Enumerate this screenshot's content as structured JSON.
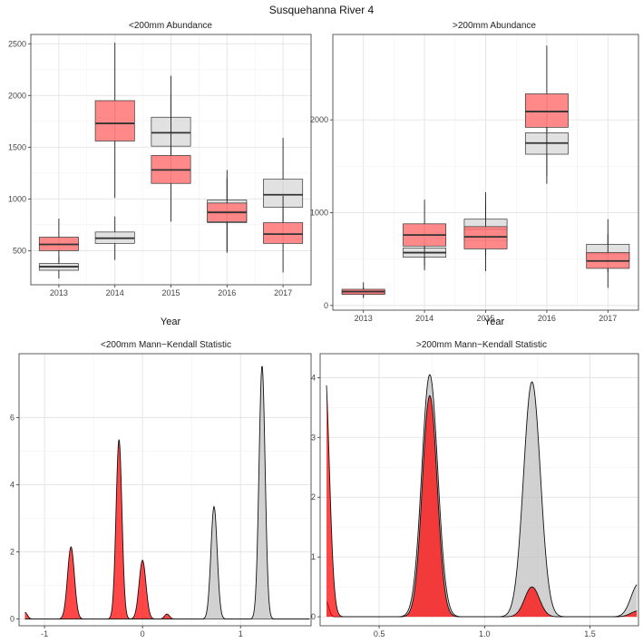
{
  "figure": {
    "title": "Susquehanna River 4"
  },
  "colors": {
    "red": "#ff0000",
    "grey": "#bdbdbd",
    "red_box": "#ff7f7f",
    "grey_box": "#dedede"
  },
  "chart_data": [
    {
      "id": "p1",
      "type": "box",
      "title": "<200mm Abundance",
      "xlabel": "Year",
      "ylabel": "",
      "categories": [
        "2013",
        "2014",
        "2015",
        "2016",
        "2017"
      ],
      "ylim": [
        170,
        2590
      ],
      "yticks": [
        500,
        1000,
        1500,
        2000,
        2500
      ],
      "series": [
        {
          "color": "grey",
          "boxes": [
            {
              "min": 230,
              "q1": 310,
              "median": 345,
              "q3": 375,
              "max": 440
            },
            {
              "min": 410,
              "q1": 570,
              "median": 620,
              "q3": 680,
              "max": 830
            },
            {
              "min": 1310,
              "q1": 1510,
              "median": 1640,
              "q3": 1790,
              "max": 2010
            },
            {
              "min": 480,
              "q1": 770,
              "median": 880,
              "q3": 990,
              "max": 1280
            },
            {
              "min": 750,
              "q1": 920,
              "median": 1040,
              "q3": 1190,
              "max": 1590
            }
          ]
        },
        {
          "color": "red",
          "boxes": [
            {
              "min": 390,
              "q1": 500,
              "median": 560,
              "q3": 630,
              "max": 810
            },
            {
              "min": 1010,
              "q1": 1560,
              "median": 1730,
              "q3": 1950,
              "max": 2510
            },
            {
              "min": 780,
              "q1": 1150,
              "median": 1280,
              "q3": 1420,
              "max": 2190
            },
            {
              "min": 490,
              "q1": 780,
              "median": 870,
              "q3": 960,
              "max": 1200
            },
            {
              "min": 290,
              "q1": 570,
              "median": 660,
              "q3": 770,
              "max": 1030
            }
          ]
        }
      ]
    },
    {
      "id": "p2",
      "type": "box",
      "title": ">200mm Abundance",
      "xlabel": "Year",
      "ylabel": "",
      "categories": [
        "2013",
        "2014",
        "2015",
        "2016",
        "2017"
      ],
      "ylim": [
        -50,
        2920
      ],
      "yticks": [
        0,
        1000,
        2000
      ],
      "series": [
        {
          "color": "grey",
          "boxes": [
            {
              "min": 95,
              "q1": 125,
              "median": 140,
              "q3": 160,
              "max": 190
            },
            {
              "min": 430,
              "q1": 520,
              "median": 570,
              "q3": 620,
              "max": 710
            },
            {
              "min": 530,
              "q1": 700,
              "median": 820,
              "q3": 930,
              "max": 1220
            },
            {
              "min": 1400,
              "q1": 1630,
              "median": 1750,
              "q3": 1860,
              "max": 2060
            },
            {
              "min": 360,
              "q1": 480,
              "median": 560,
              "q3": 660,
              "max": 930
            }
          ]
        },
        {
          "color": "red",
          "boxes": [
            {
              "min": 80,
              "q1": 120,
              "median": 150,
              "q3": 175,
              "max": 250
            },
            {
              "min": 380,
              "q1": 640,
              "median": 760,
              "q3": 880,
              "max": 1140
            },
            {
              "min": 370,
              "q1": 610,
              "median": 740,
              "q3": 850,
              "max": 1110
            },
            {
              "min": 1310,
              "q1": 1920,
              "median": 2090,
              "q3": 2280,
              "max": 2800
            },
            {
              "min": 190,
              "q1": 400,
              "median": 480,
              "q3": 570,
              "max": 770
            }
          ]
        }
      ]
    },
    {
      "id": "p3",
      "type": "density",
      "title": "<200mm Mann−Kendall Statistic",
      "xlabel": "",
      "ylabel": "",
      "xlim": [
        -1.26,
        1.72
      ],
      "ylim": [
        -0.2,
        7.9
      ],
      "xticks": [
        -1,
        0,
        1
      ],
      "yticks": [
        0,
        2,
        4,
        6
      ],
      "series": [
        {
          "color": "red",
          "peaks": [
            {
              "mu": -1.2,
              "sigma": 0.025,
              "height": 0.2
            },
            {
              "mu": -0.73,
              "sigma": 0.035,
              "height": 2.15
            },
            {
              "mu": -0.24,
              "sigma": 0.03,
              "height": 5.35
            },
            {
              "mu": 0.0,
              "sigma": 0.035,
              "height": 1.75
            },
            {
              "mu": 0.25,
              "sigma": 0.025,
              "height": 0.15
            }
          ]
        },
        {
          "color": "grey",
          "peaks": [
            {
              "mu": 0.73,
              "sigma": 0.032,
              "height": 3.35
            },
            {
              "mu": 1.22,
              "sigma": 0.031,
              "height": 7.55
            }
          ]
        }
      ]
    },
    {
      "id": "p4",
      "type": "density",
      "title": ">200mm Mann−Kendall Statistic",
      "xlabel": "",
      "ylabel": "",
      "xlim": [
        0.22,
        1.73
      ],
      "ylim": [
        -0.15,
        4.4
      ],
      "xticks": [
        0.5,
        1.0,
        1.5
      ],
      "xtick_labels": [
        "0.5",
        "1.0",
        "1.5"
      ],
      "yticks": [
        0,
        1,
        2,
        3,
        4
      ],
      "series": [
        {
          "color": "grey",
          "peaks": [
            {
              "mu": 0.25,
              "sigma": 0.012,
              "height": 0.25
            },
            {
              "mu": 0.74,
              "sigma": 0.038,
              "height": 4.05
            },
            {
              "mu": 1.225,
              "sigma": 0.04,
              "height": 3.93
            },
            {
              "mu": 1.73,
              "sigma": 0.035,
              "height": 0.55
            }
          ]
        },
        {
          "color": "red",
          "peaks": [
            {
              "mu": 0.24,
              "sigma": 0.023,
              "height": 4.27
            },
            {
              "mu": 0.74,
              "sigma": 0.035,
              "height": 3.7
            },
            {
              "mu": 1.225,
              "sigma": 0.035,
              "height": 0.5
            },
            {
              "mu": 1.73,
              "sigma": 0.035,
              "height": 0.1
            }
          ]
        }
      ]
    }
  ]
}
